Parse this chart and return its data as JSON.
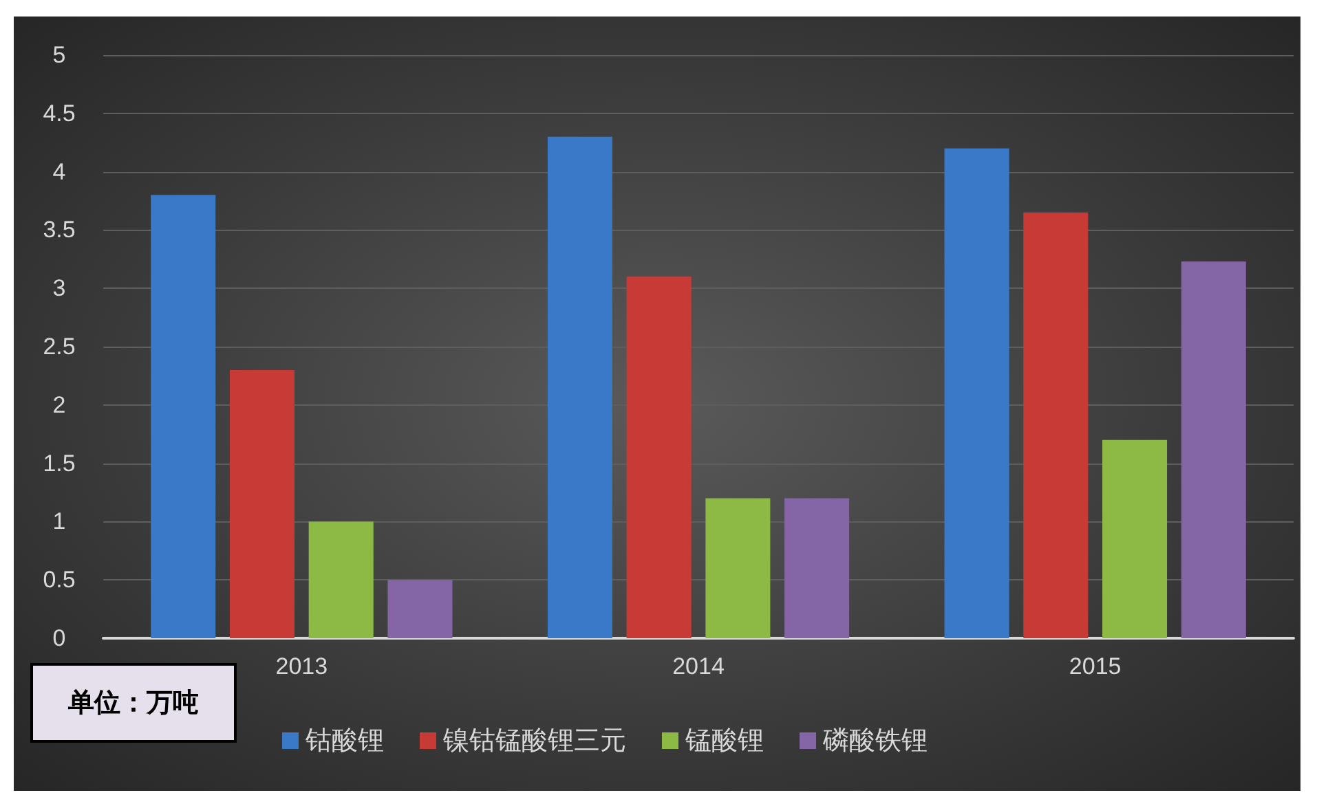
{
  "chart_data": {
    "type": "bar",
    "categories": [
      "2013",
      "2014",
      "2015"
    ],
    "series": [
      {
        "name": "钴酸锂",
        "color": "#3a78c8",
        "values": [
          3.8,
          4.3,
          4.2
        ]
      },
      {
        "name": "镍钴锰酸锂三元",
        "color": "#c83a36",
        "values": [
          2.3,
          3.1,
          3.65
        ]
      },
      {
        "name": "锰酸锂",
        "color": "#8dba44",
        "values": [
          1.0,
          1.2,
          1.7
        ]
      },
      {
        "name": "磷酸铁锂",
        "color": "#8465a6",
        "values": [
          0.5,
          1.2,
          3.23
        ]
      }
    ],
    "ylim": [
      0,
      5
    ],
    "yticks": [
      0,
      0.5,
      1,
      1.5,
      2,
      2.5,
      3,
      3.5,
      4,
      4.5,
      5
    ],
    "grid": "y",
    "legend": "bottom",
    "annotations": [
      "单位：万吨"
    ]
  }
}
